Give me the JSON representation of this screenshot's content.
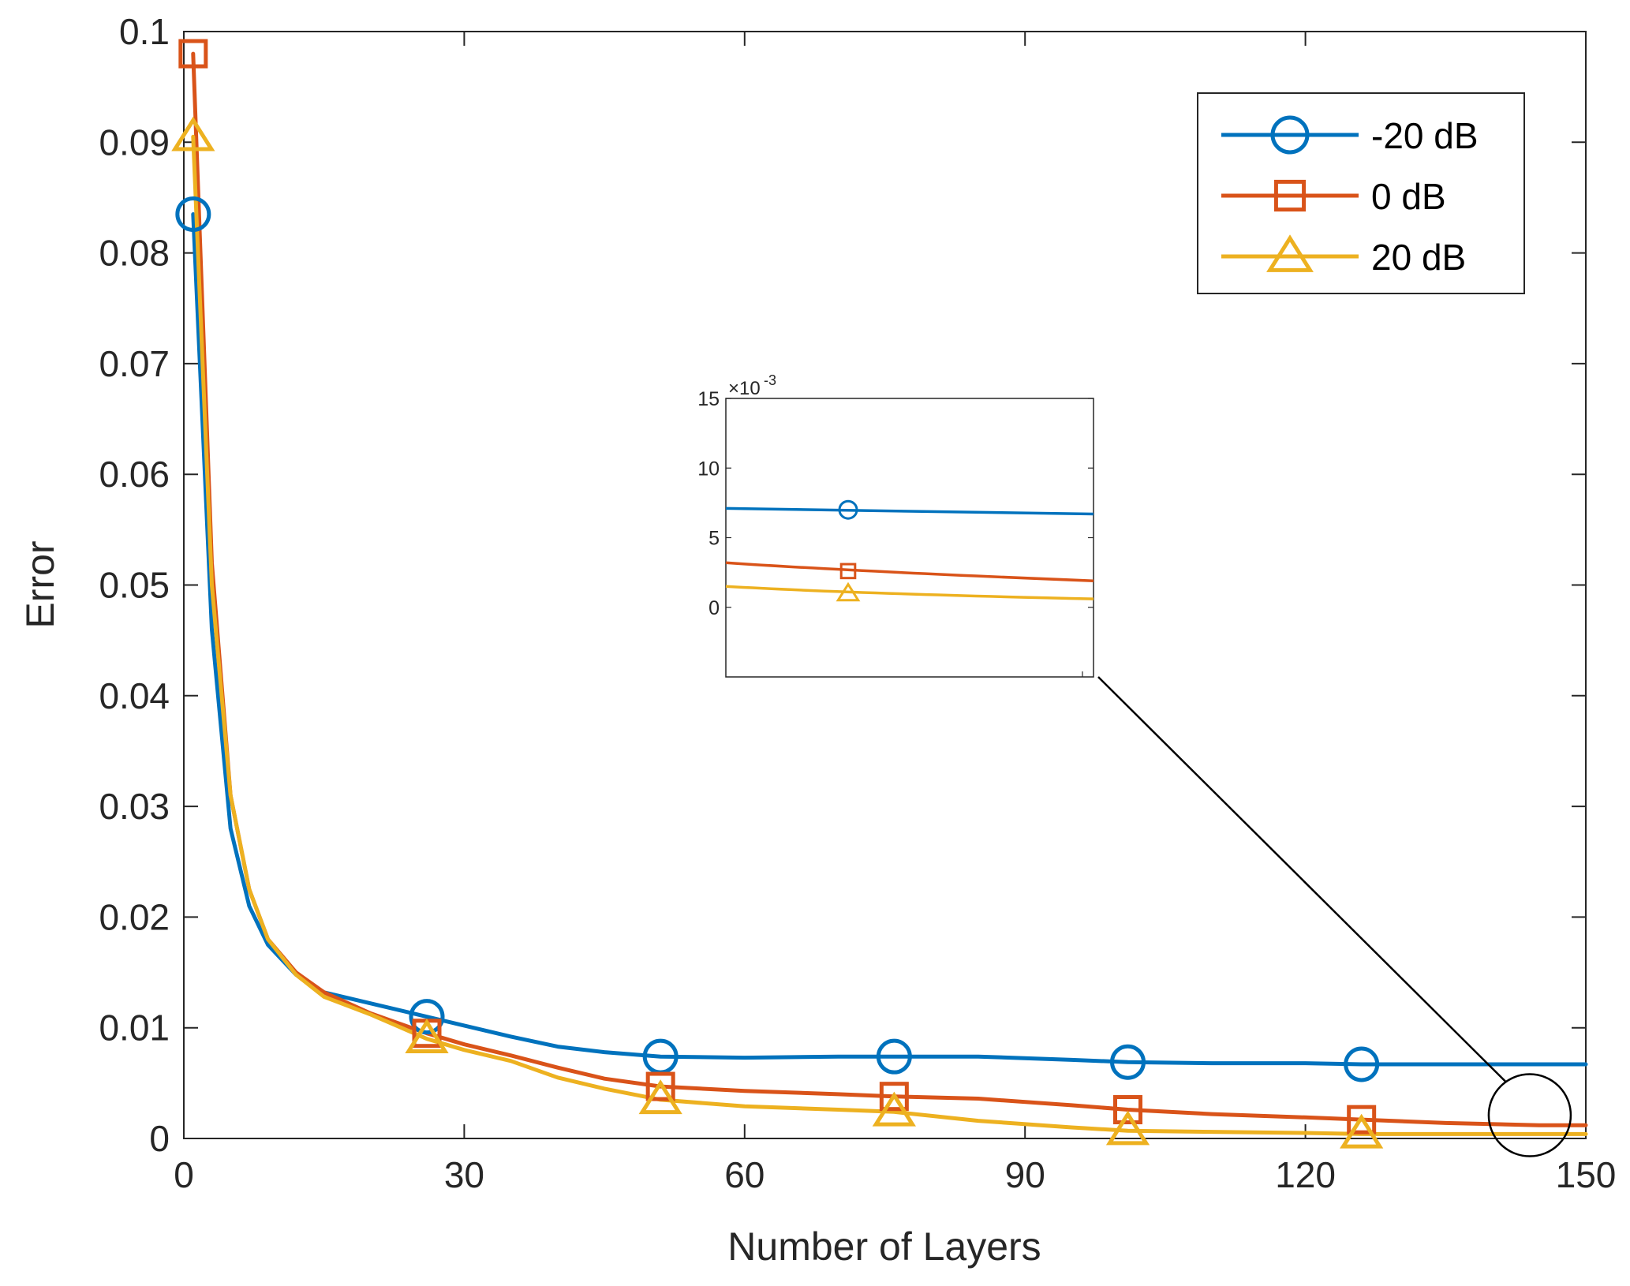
{
  "chart_data": {
    "type": "line",
    "xlabel": "Number of Layers",
    "ylabel": "Error",
    "xlim": [
      0,
      150
    ],
    "ylim": [
      0,
      0.1
    ],
    "xticks": [
      0,
      30,
      60,
      90,
      120,
      150
    ],
    "yticks": [
      0,
      0.01,
      0.02,
      0.03,
      0.04,
      0.05,
      0.06,
      0.07,
      0.08,
      0.09,
      0.1
    ],
    "xtick_labels": [
      "0",
      "30",
      "60",
      "90",
      "120",
      "150"
    ],
    "ytick_labels": [
      "0",
      "0.01",
      "0.02",
      "0.03",
      "0.04",
      "0.05",
      "0.06",
      "0.07",
      "0.08",
      "0.09",
      "0.1"
    ],
    "grid": false,
    "legend_position": "top-right",
    "series": [
      {
        "name": "-20 dB",
        "color": "#0072BD",
        "marker": "circle",
        "x": [
          1,
          3,
          5,
          7,
          9,
          12,
          15,
          20,
          26,
          30,
          35,
          40,
          45,
          51,
          60,
          70,
          76,
          85,
          95,
          101,
          110,
          120,
          126,
          135,
          150
        ],
        "y": [
          0.0835,
          0.046,
          0.028,
          0.021,
          0.0175,
          0.0148,
          0.0132,
          0.0122,
          0.011,
          0.0102,
          0.0092,
          0.0083,
          0.0078,
          0.0074,
          0.0073,
          0.0074,
          0.0074,
          0.0074,
          0.0071,
          0.0069,
          0.0068,
          0.0068,
          0.0067,
          0.0067,
          0.0067
        ],
        "marker_x": [
          1,
          26,
          51,
          76,
          101,
          126
        ],
        "marker_y": [
          0.0835,
          0.011,
          0.0074,
          0.0074,
          0.0069,
          0.0067
        ]
      },
      {
        "name": "0 dB",
        "color": "#D95319",
        "marker": "square",
        "x": [
          1,
          3,
          5,
          7,
          9,
          12,
          15,
          20,
          26,
          30,
          35,
          40,
          45,
          51,
          60,
          70,
          76,
          85,
          95,
          101,
          110,
          120,
          126,
          135,
          145,
          150
        ],
        "y": [
          0.098,
          0.052,
          0.031,
          0.0225,
          0.018,
          0.015,
          0.0132,
          0.0113,
          0.0095,
          0.0085,
          0.0075,
          0.0064,
          0.0054,
          0.0047,
          0.0043,
          0.004,
          0.0038,
          0.0036,
          0.003,
          0.0026,
          0.0022,
          0.0019,
          0.0017,
          0.0014,
          0.0012,
          0.0012
        ],
        "marker_x": [
          1,
          26,
          51,
          76,
          101,
          126
        ],
        "marker_y": [
          0.098,
          0.0095,
          0.0047,
          0.0038,
          0.0026,
          0.0017
        ]
      },
      {
        "name": "20 dB",
        "color": "#EDB120",
        "marker": "triangle",
        "x": [
          1,
          3,
          5,
          7,
          9,
          12,
          15,
          20,
          26,
          30,
          35,
          40,
          45,
          51,
          60,
          70,
          76,
          85,
          95,
          101,
          110,
          120,
          126,
          135,
          150
        ],
        "y": [
          0.0905,
          0.05,
          0.031,
          0.0225,
          0.018,
          0.0148,
          0.0128,
          0.0112,
          0.009,
          0.008,
          0.007,
          0.0055,
          0.0045,
          0.0035,
          0.0029,
          0.0026,
          0.0024,
          0.0016,
          0.001,
          0.0007,
          0.0006,
          0.0005,
          0.0004,
          0.0004,
          0.0004
        ],
        "marker_x": [
          1,
          26,
          51,
          76,
          101,
          126
        ],
        "marker_y": [
          0.0905,
          0.009,
          0.0035,
          0.0024,
          0.0007,
          0.0004
        ]
      }
    ],
    "inset": {
      "ylim": [
        -5,
        15
      ],
      "ytick_labels": [
        "0",
        "5",
        "10",
        "15"
      ],
      "yticks": [
        0,
        5,
        10,
        15
      ],
      "exponent_label": "×10",
      "exponent_power": "-3",
      "series": [
        {
          "name": "-20 dB",
          "start": 7.1,
          "end": 6.7,
          "marker_value": 7.0
        },
        {
          "name": "0 dB",
          "start": 3.2,
          "end": 1.9,
          "marker_value": 2.6
        },
        {
          "name": "20 dB",
          "start": 1.5,
          "end": 0.6,
          "marker_value": 1.0
        }
      ]
    },
    "annotations": [
      {
        "type": "zoom-circle",
        "x": 144,
        "y": 0.0021,
        "points_to": "inset"
      }
    ]
  }
}
